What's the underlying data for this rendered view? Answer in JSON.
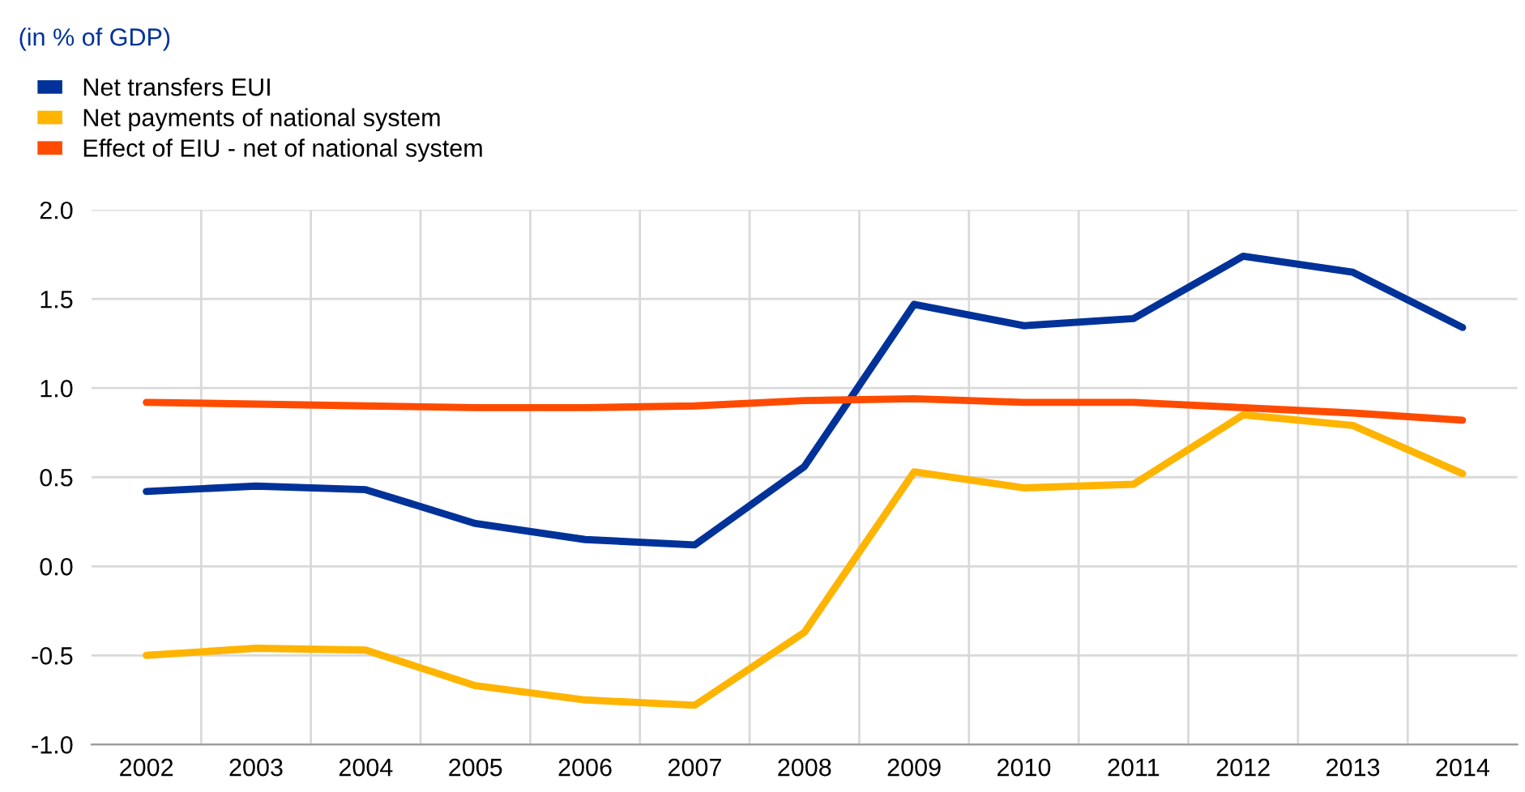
{
  "chart_data": {
    "type": "line",
    "title": "(in % of GDP)",
    "categories": [
      "2002",
      "2003",
      "2004",
      "2005",
      "2006",
      "2007",
      "2008",
      "2009",
      "2010",
      "2011",
      "2012",
      "2013",
      "2014"
    ],
    "series": [
      {
        "name": "Net transfers EUI",
        "color": "#003299",
        "values": [
          0.42,
          0.45,
          0.43,
          0.24,
          0.15,
          0.12,
          0.56,
          1.47,
          1.35,
          1.39,
          1.74,
          1.65,
          1.34
        ]
      },
      {
        "name": "Net payments of national system",
        "color": "#ffb400",
        "values": [
          -0.5,
          -0.46,
          -0.47,
          -0.67,
          -0.75,
          -0.78,
          -0.37,
          0.53,
          0.44,
          0.46,
          0.85,
          0.79,
          0.52
        ]
      },
      {
        "name": "Effect of EIU - net of national system",
        "color": "#ff4b00",
        "values": [
          0.92,
          0.91,
          0.9,
          0.89,
          0.89,
          0.9,
          0.93,
          0.94,
          0.92,
          0.92,
          0.89,
          0.86,
          0.82
        ]
      }
    ],
    "ylim": [
      -1.0,
      2.0
    ],
    "yticks": [
      {
        "value": -1.0,
        "label": "-1.0"
      },
      {
        "value": -0.5,
        "label": "-0.5"
      },
      {
        "value": 0.0,
        "label": "0.0"
      },
      {
        "value": 0.5,
        "label": "0.5"
      },
      {
        "value": 1.0,
        "label": "1.0"
      },
      {
        "value": 1.5,
        "label": "1.5"
      },
      {
        "value": 2.0,
        "label": "2.0"
      }
    ],
    "grid": true,
    "legend": "top left",
    "marker": "none",
    "line_style": "solid"
  }
}
